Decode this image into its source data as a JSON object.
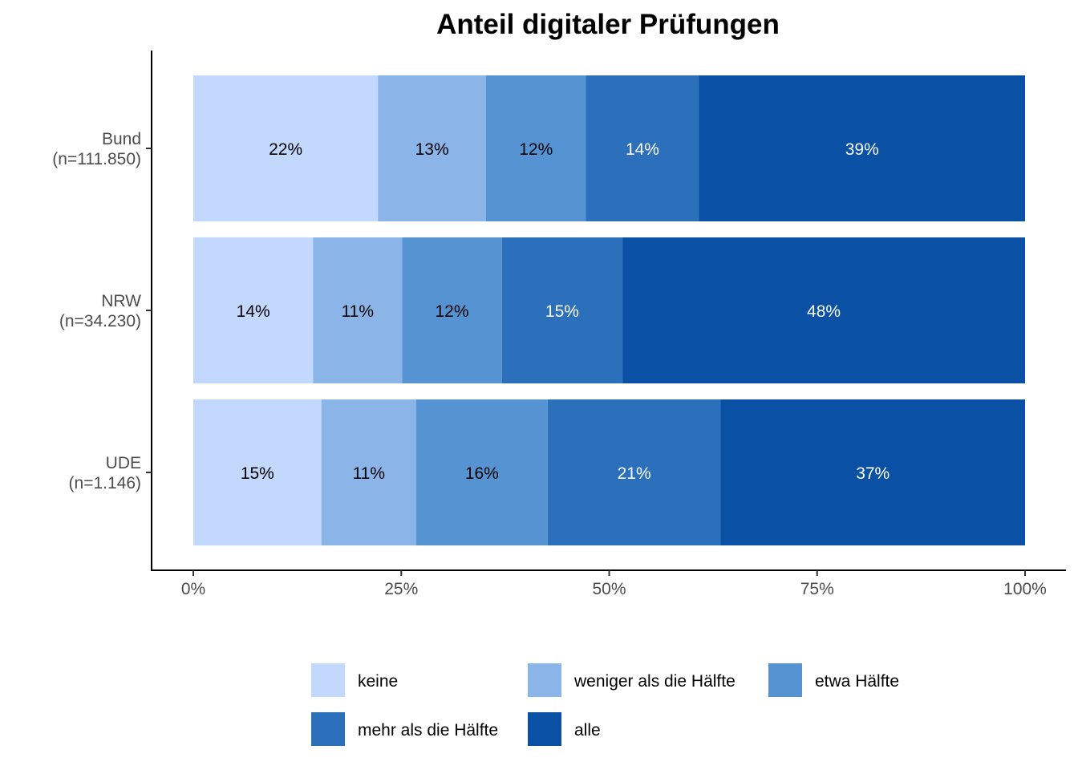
{
  "chart_data": {
    "type": "bar",
    "orientation": "horizontal",
    "stacked": true,
    "title": "Anteil digitaler Prüfungen",
    "xlabel": "",
    "ylabel": "",
    "categories": [
      "Bund\n(n=111.850)",
      "NRW\n(n=34.230)",
      "UDE\n(n=1.146)"
    ],
    "series": [
      {
        "name": "keine",
        "values": [
          22.2,
          14.4,
          15.4
        ],
        "labels": [
          "22%",
          "14%",
          "15%"
        ],
        "color": "#c2d9fd",
        "label_color": "#000000"
      },
      {
        "name": "weniger als die Hälfte",
        "values": [
          13.0,
          10.7,
          11.4
        ],
        "labels": [
          "13%",
          "11%",
          "11%"
        ],
        "color": "#8bb4e8",
        "label_color": "#000000"
      },
      {
        "name": "etwa Hälfte",
        "values": [
          12.0,
          12.0,
          15.8
        ],
        "labels": [
          "12%",
          "12%",
          "16%"
        ],
        "color": "#5693d3",
        "label_color": "#000000"
      },
      {
        "name": "mehr als die Hälfte",
        "values": [
          13.6,
          14.5,
          20.8
        ],
        "labels": [
          "14%",
          "15%",
          "21%"
        ],
        "color": "#2c70bb",
        "label_color": "#ffffff"
      },
      {
        "name": "alle",
        "values": [
          39.2,
          48.4,
          36.6
        ],
        "labels": [
          "39%",
          "48%",
          "37%"
        ],
        "color": "#0a50a5",
        "label_color": "#ffffff"
      }
    ],
    "xlim": [
      0,
      100
    ],
    "xticks": [
      0,
      25,
      50,
      75,
      100
    ],
    "xtick_labels": [
      "0%",
      "25%",
      "50%",
      "75%",
      "100%"
    ],
    "grid": false,
    "legend_placement": "bottom"
  }
}
